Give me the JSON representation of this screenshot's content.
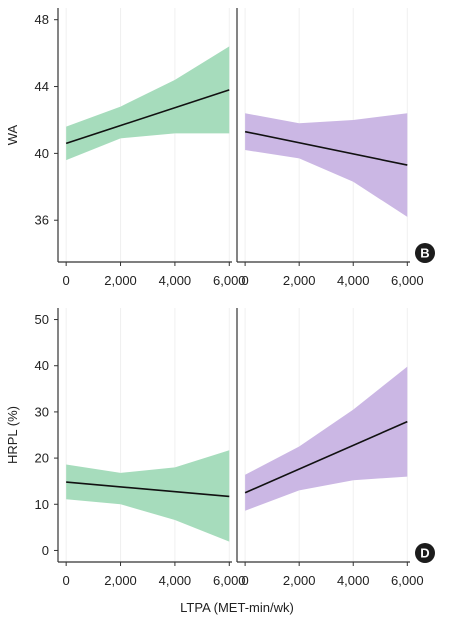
{
  "colors": {
    "green_band": "#a6dcbc",
    "purple_band": "#cbb7e4",
    "line": "#111111",
    "axis": "#333333",
    "grid": "#f0f0f0",
    "badge": "#1c1c1c"
  },
  "xlabel": "LTPA (MET-min/wk)",
  "chart_data": [
    {
      "id": "top-left",
      "type": "line",
      "band_color": "green",
      "ylabel": "WA",
      "xlim": [
        -300,
        6100
      ],
      "ylim": [
        33.5,
        48.7
      ],
      "xticks": [
        0,
        2000,
        4000,
        6000
      ],
      "xtick_labels": [
        "0",
        "2,000",
        "4,000",
        "6,000"
      ],
      "yticks": [
        36,
        40,
        44,
        48
      ],
      "ytick_labels": [
        "36",
        "40",
        "44",
        "48"
      ],
      "series": [
        {
          "x": [
            0,
            6000
          ],
          "y": [
            40.6,
            43.8
          ]
        }
      ],
      "ci": {
        "x": [
          0,
          2000,
          4000,
          6000
        ],
        "lower": [
          39.6,
          40.9,
          41.2,
          41.2
        ],
        "upper": [
          41.6,
          42.8,
          44.4,
          46.4
        ]
      },
      "badge": ""
    },
    {
      "id": "top-right",
      "type": "line",
      "band_color": "purple",
      "ylabel": "",
      "xlim": [
        -300,
        6100
      ],
      "ylim": [
        33.5,
        48.7
      ],
      "xticks": [
        0,
        2000,
        4000,
        6000
      ],
      "xtick_labels": [
        "0",
        "2,000",
        "4,000",
        "6,000"
      ],
      "yticks": [],
      "ytick_labels": [],
      "series": [
        {
          "x": [
            0,
            6000
          ],
          "y": [
            41.3,
            39.3
          ]
        }
      ],
      "ci": {
        "x": [
          0,
          2000,
          4000,
          6000
        ],
        "lower": [
          40.2,
          39.7,
          38.3,
          36.2
        ],
        "upper": [
          42.4,
          41.8,
          42.0,
          42.4
        ]
      },
      "badge": "B"
    },
    {
      "id": "bottom-left",
      "type": "line",
      "band_color": "green",
      "ylabel": "HRPL (%)",
      "xlim": [
        -300,
        6100
      ],
      "ylim": [
        -2.5,
        52.5
      ],
      "xticks": [
        0,
        2000,
        4000,
        6000
      ],
      "xtick_labels": [
        "0",
        "2,000",
        "4,000",
        "6,000"
      ],
      "yticks": [
        0,
        10,
        20,
        30,
        40,
        50
      ],
      "ytick_labels": [
        "0",
        "10",
        "20",
        "30",
        "40",
        "50"
      ],
      "series": [
        {
          "x": [
            0,
            6000
          ],
          "y": [
            14.8,
            11.7
          ]
        }
      ],
      "ci": {
        "x": [
          0,
          2000,
          4000,
          6000
        ],
        "lower": [
          11.1,
          10.0,
          6.6,
          1.9
        ],
        "upper": [
          18.6,
          16.8,
          18.0,
          21.7
        ]
      },
      "badge": ""
    },
    {
      "id": "bottom-right",
      "type": "line",
      "band_color": "purple",
      "ylabel": "",
      "xlim": [
        -300,
        6100
      ],
      "ylim": [
        -2.5,
        52.5
      ],
      "xticks": [
        0,
        2000,
        4000,
        6000
      ],
      "xtick_labels": [
        "0",
        "2,000",
        "4,000",
        "6,000"
      ],
      "yticks": [],
      "ytick_labels": [],
      "series": [
        {
          "x": [
            0,
            6000
          ],
          "y": [
            12.5,
            27.9
          ]
        }
      ],
      "ci": {
        "x": [
          0,
          2000,
          4000,
          6000
        ],
        "lower": [
          8.6,
          13.0,
          15.2,
          16.0
        ],
        "upper": [
          16.4,
          22.5,
          30.5,
          39.8
        ]
      },
      "badge": "D"
    }
  ]
}
